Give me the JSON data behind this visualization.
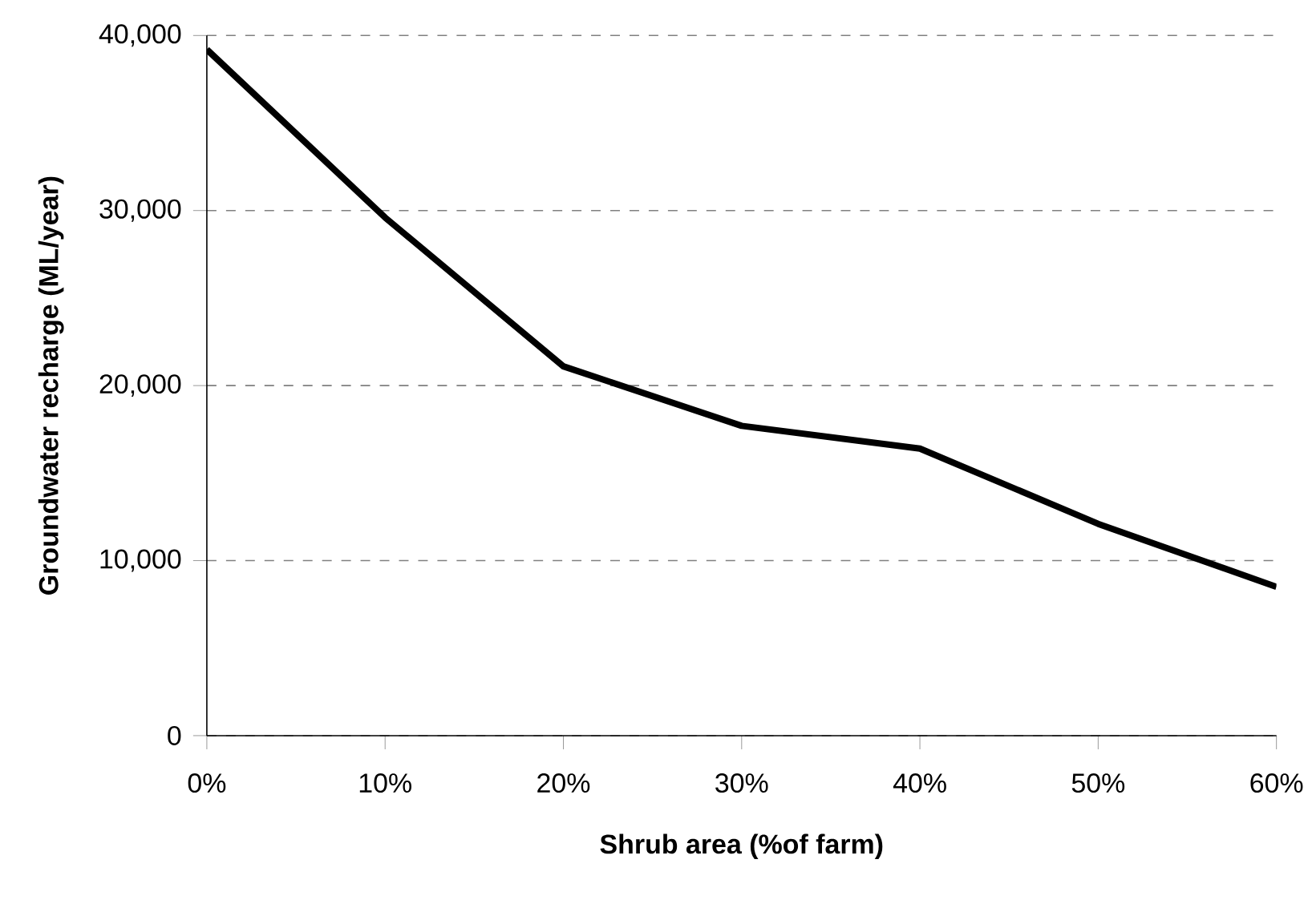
{
  "chart_data": {
    "type": "line",
    "xlabel": "Shrub area (%of farm)",
    "ylabel": "Groundwater recharge (ML/year)",
    "x": [
      0,
      10,
      20,
      30,
      40,
      50,
      60
    ],
    "series": [
      {
        "color": "#000000",
        "values": [
          39200,
          29600,
          21100,
          17700,
          16400,
          12100,
          8500
        ]
      }
    ],
    "xlim": [
      0,
      60
    ],
    "xticks": [
      {
        "value": 0,
        "label": "0%"
      },
      {
        "value": 10,
        "label": "10%"
      },
      {
        "value": 20,
        "label": "20%"
      },
      {
        "value": 30,
        "label": "30%"
      },
      {
        "value": 40,
        "label": "40%"
      },
      {
        "value": 50,
        "label": "50%"
      },
      {
        "value": 60,
        "label": "60%"
      }
    ],
    "ylim": [
      0,
      40000
    ],
    "yticks": [
      0,
      {
        "value": 10000,
        "label": "10,000"
      },
      {
        "value": 20000,
        "label": "20,000"
      },
      {
        "value": 30000,
        "label": "30,000"
      },
      {
        "value": 40000,
        "label": "40,000"
      }
    ],
    "grid": "y",
    "marker": "none",
    "line_style": "solid"
  }
}
